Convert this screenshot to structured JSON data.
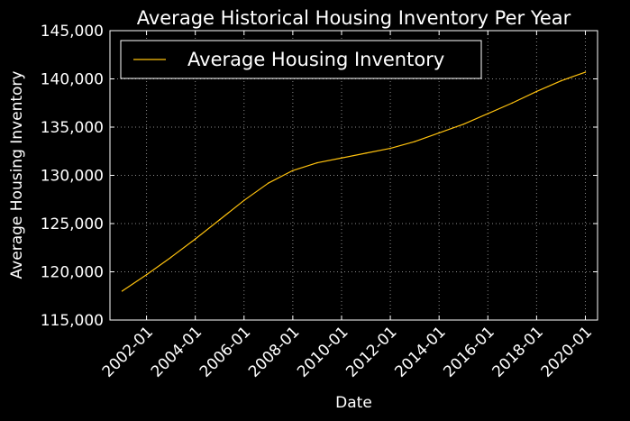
{
  "chart_data": {
    "type": "line",
    "title": "Average Historical Housing Inventory Per Year",
    "xlabel": "Date",
    "ylabel": "Average Housing Inventory",
    "x_ticks": [
      "2002-01",
      "2004-01",
      "2006-01",
      "2008-01",
      "2010-01",
      "2012-01",
      "2014-01",
      "2016-01",
      "2018-01",
      "2020-01"
    ],
    "y_ticks": [
      "115,000",
      "120,000",
      "125,000",
      "130,000",
      "135,000",
      "140,000",
      "145,000"
    ],
    "ylim": [
      115000,
      145000
    ],
    "xlim": [
      "2000-07",
      "2020-07"
    ],
    "grid": true,
    "legend_position": "top-left",
    "series": [
      {
        "name": "Average Housing Inventory",
        "color": "#ffc20e",
        "points": [
          {
            "x": "2001-01",
            "y": 118000
          },
          {
            "x": "2002-01",
            "y": 119700
          },
          {
            "x": "2003-01",
            "y": 121500
          },
          {
            "x": "2004-01",
            "y": 123400
          },
          {
            "x": "2005-01",
            "y": 125400
          },
          {
            "x": "2006-01",
            "y": 127400
          },
          {
            "x": "2007-01",
            "y": 129200
          },
          {
            "x": "2008-01",
            "y": 130500
          },
          {
            "x": "2009-01",
            "y": 131300
          },
          {
            "x": "2010-01",
            "y": 131800
          },
          {
            "x": "2011-01",
            "y": 132300
          },
          {
            "x": "2012-01",
            "y": 132800
          },
          {
            "x": "2013-01",
            "y": 133500
          },
          {
            "x": "2014-01",
            "y": 134400
          },
          {
            "x": "2015-01",
            "y": 135300
          },
          {
            "x": "2016-01",
            "y": 136400
          },
          {
            "x": "2017-01",
            "y": 137500
          },
          {
            "x": "2018-01",
            "y": 138700
          },
          {
            "x": "2019-01",
            "y": 139800
          },
          {
            "x": "2020-01",
            "y": 140700
          }
        ]
      }
    ],
    "colors": {
      "background": "#000000",
      "axes": "#ffffff",
      "grid": "#8a8a8a",
      "text": "#ffffff"
    }
  }
}
